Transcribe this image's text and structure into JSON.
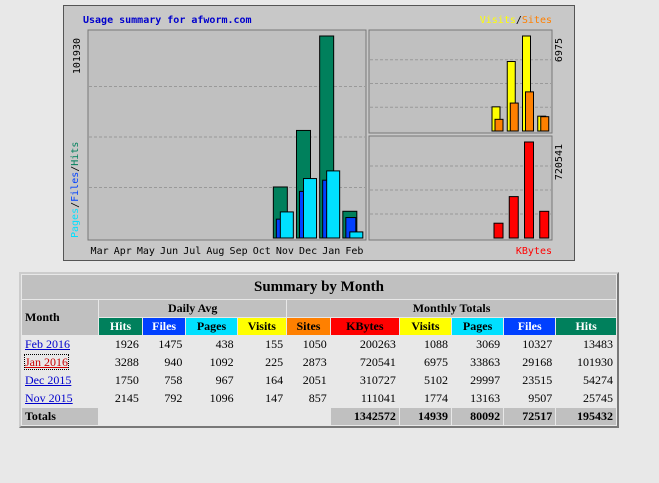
{
  "chart_data": [
    {
      "type": "bar",
      "title": "Usage summary for afworm.com",
      "categories": [
        "Mar",
        "Apr",
        "May",
        "Jun",
        "Jul",
        "Aug",
        "Sep",
        "Oct",
        "Nov",
        "Dec",
        "Jan",
        "Feb"
      ],
      "series": [
        {
          "name": "Hits",
          "color": "#00805c",
          "values": [
            0,
            0,
            0,
            0,
            0,
            0,
            0,
            0,
            25745,
            54274,
            101930,
            13483
          ]
        },
        {
          "name": "Files",
          "color": "#0040ff",
          "values": [
            0,
            0,
            0,
            0,
            0,
            0,
            0,
            0,
            9507,
            23515,
            29168,
            10327
          ]
        },
        {
          "name": "Pages",
          "color": "#00e0ff",
          "values": [
            0,
            0,
            0,
            0,
            0,
            0,
            0,
            0,
            13163,
            29997,
            33863,
            3069
          ]
        }
      ],
      "separator": "/",
      "ylim": [
        0,
        101930
      ],
      "yticks": [
        101930
      ]
    },
    {
      "type": "bar",
      "series": [
        {
          "name": "Visits",
          "color": "#ffff00",
          "values": [
            0,
            0,
            0,
            0,
            0,
            0,
            0,
            0,
            1774,
            5102,
            6975,
            1088
          ]
        },
        {
          "name": "Sites",
          "color": "#ff8000",
          "values": [
            0,
            0,
            0,
            0,
            0,
            0,
            0,
            0,
            857,
            2051,
            2873,
            1050
          ]
        }
      ],
      "separator": "/",
      "ylim": [
        0,
        6975
      ],
      "yticks": [
        6975
      ]
    },
    {
      "type": "bar",
      "series": [
        {
          "name": "KBytes",
          "color": "#ff0000",
          "values": [
            0,
            0,
            0,
            0,
            0,
            0,
            0,
            0,
            111041,
            310727,
            720541,
            200263
          ]
        }
      ],
      "ylim": [
        0,
        720541
      ],
      "yticks": [
        720541
      ]
    }
  ],
  "table": {
    "title": "Summary by Month",
    "month_header": "Month",
    "group_headers": [
      "Daily Avg",
      "Monthly Totals"
    ],
    "columns": [
      {
        "label": "Hits",
        "color": "#00805c",
        "text": "#ffffff"
      },
      {
        "label": "Files",
        "color": "#0040ff",
        "text": "#ffffff"
      },
      {
        "label": "Pages",
        "color": "#00e0ff",
        "text": "#000000"
      },
      {
        "label": "Visits",
        "color": "#ffff00",
        "text": "#000000"
      },
      {
        "label": "Sites",
        "color": "#ff8000",
        "text": "#000000"
      },
      {
        "label": "KBytes",
        "color": "#ff0000",
        "text": "#000000"
      },
      {
        "label": "Visits",
        "color": "#ffff00",
        "text": "#000000"
      },
      {
        "label": "Pages",
        "color": "#00e0ff",
        "text": "#000000"
      },
      {
        "label": "Files",
        "color": "#0040ff",
        "text": "#ffffff"
      },
      {
        "label": "Hits",
        "color": "#00805c",
        "text": "#ffffff"
      }
    ],
    "rows": [
      {
        "month": "Feb 2016",
        "values": [
          1926,
          1475,
          438,
          155,
          1050,
          200263,
          1088,
          3069,
          10327,
          13483
        ]
      },
      {
        "month": "Jan 2016",
        "values": [
          3288,
          940,
          1092,
          225,
          2873,
          720541,
          6975,
          33863,
          29168,
          101930
        ]
      },
      {
        "month": "Dec 2015",
        "values": [
          1750,
          758,
          967,
          164,
          2051,
          310727,
          5102,
          29997,
          23515,
          54274
        ]
      },
      {
        "month": "Nov 2015",
        "values": [
          2145,
          792,
          1096,
          147,
          857,
          111041,
          1774,
          13163,
          9507,
          25745
        ]
      }
    ],
    "totals": {
      "label": "Totals",
      "values": [
        1342572,
        14939,
        80092,
        72517,
        195432
      ]
    }
  }
}
